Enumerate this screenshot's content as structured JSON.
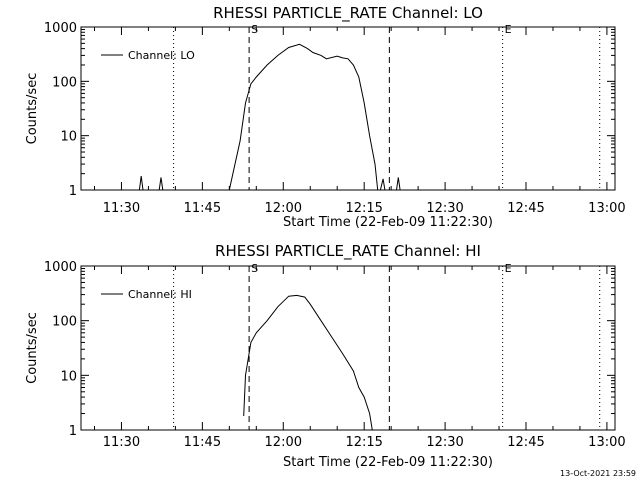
{
  "footer": "13-Oct-2021 23:59",
  "colors": {
    "background": "#ffffff",
    "foreground": "#000000"
  },
  "chart_data": [
    {
      "type": "line",
      "title": "RHESSI PARTICLE_RATE Channel: LO",
      "xlabel": "Start Time (22-Feb-09 11:22:30)",
      "ylabel": "Counts/sec",
      "yscale": "log",
      "ylim": [
        1,
        1000
      ],
      "xlim": [
        "11:22:30",
        "13:01:30"
      ],
      "x_ticks": [
        "11:30",
        "11:45",
        "12:00",
        "12:15",
        "12:30",
        "12:45",
        "13:00"
      ],
      "y_ticks": [
        "1",
        "10",
        "100",
        "1000"
      ],
      "legend": "top-left",
      "grid": false,
      "series": [
        {
          "name": "Channel: LO",
          "x": [
            "11:33:20",
            "11:33:40",
            "11:34:00",
            "11:37:00",
            "11:37:20",
            "11:37:40",
            "11:50:00",
            "11:52:00",
            "11:53:00",
            "11:54:00",
            "11:55:00",
            "11:57:00",
            "11:59:00",
            "12:01:00",
            "12:03:00",
            "12:04:30",
            "12:05:30",
            "12:07:00",
            "12:08:00",
            "12:10:00",
            "12:11:00",
            "12:12:00",
            "12:13:00",
            "12:14:00",
            "12:15:00",
            "12:16:00",
            "12:17:00",
            "12:17:30",
            "12:18:00",
            "12:18:30",
            "12:18:50",
            "12:19:10",
            "12:19:30",
            "12:21:00",
            "12:21:20",
            "12:21:40",
            "12:22:00"
          ],
          "values": [
            1,
            1.8,
            1,
            1,
            1.7,
            1,
            1,
            8,
            40,
            90,
            120,
            200,
            300,
            420,
            480,
            400,
            340,
            300,
            260,
            290,
            270,
            260,
            200,
            120,
            40,
            10,
            3,
            1,
            1,
            1.6,
            1,
            1,
            1,
            1,
            1.7,
            1,
            1
          ]
        }
      ],
      "vertical_lines": [
        {
          "time": "11:53:40",
          "style": "dashed",
          "label": "S"
        },
        {
          "time": "12:19:40",
          "style": "dashed",
          "label": ""
        },
        {
          "time": "11:39:40",
          "style": "dotted",
          "label": ""
        },
        {
          "time": "12:40:40",
          "style": "dotted",
          "label": "E"
        },
        {
          "time": "12:58:40",
          "style": "dotted",
          "label": ""
        }
      ]
    },
    {
      "type": "line",
      "title": "RHESSI PARTICLE_RATE Channel: HI",
      "xlabel": "Start Time (22-Feb-09 11:22:30)",
      "ylabel": "Counts/sec",
      "yscale": "log",
      "ylim": [
        1,
        1000
      ],
      "xlim": [
        "11:22:30",
        "13:01:30"
      ],
      "x_ticks": [
        "11:30",
        "11:45",
        "12:00",
        "12:15",
        "12:30",
        "12:45",
        "13:00"
      ],
      "y_ticks": [
        "1",
        "10",
        "100",
        "1000"
      ],
      "legend": "top-left",
      "grid": false,
      "series": [
        {
          "name": "Channel: HI",
          "x": [
            "11:52:40",
            "11:53:00",
            "11:54:00",
            "11:55:00",
            "11:57:00",
            "11:59:00",
            "12:01:00",
            "12:02:30",
            "12:04:00",
            "12:05:00",
            "12:07:00",
            "12:09:00",
            "12:11:00",
            "12:13:00",
            "12:14:00",
            "12:15:00",
            "12:16:00",
            "12:16:30"
          ],
          "values": [
            1.8,
            10,
            40,
            60,
            100,
            180,
            280,
            290,
            270,
            200,
            100,
            50,
            25,
            12,
            6,
            4,
            2,
            1
          ]
        }
      ],
      "vertical_lines": [
        {
          "time": "11:53:40",
          "style": "dashed",
          "label": "S"
        },
        {
          "time": "12:19:40",
          "style": "dashed",
          "label": ""
        },
        {
          "time": "11:39:40",
          "style": "dotted",
          "label": ""
        },
        {
          "time": "12:40:40",
          "style": "dotted",
          "label": "E"
        },
        {
          "time": "12:58:40",
          "style": "dotted",
          "label": ""
        }
      ]
    }
  ]
}
